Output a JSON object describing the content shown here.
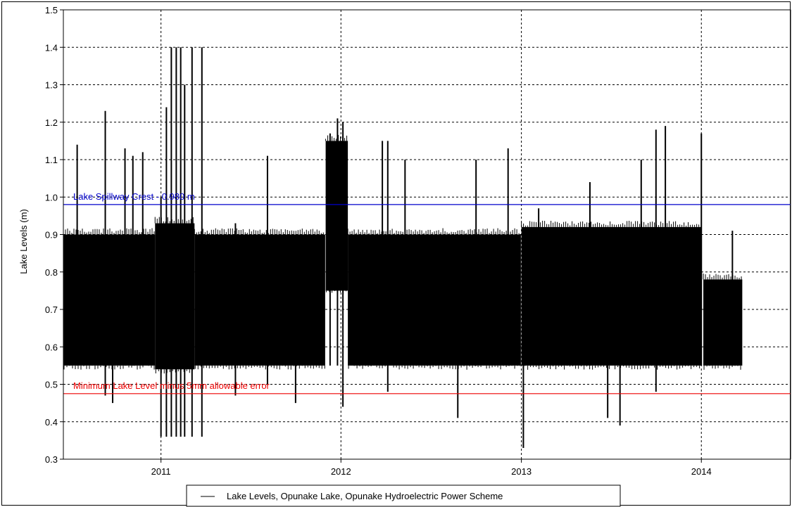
{
  "chart_data": {
    "type": "line",
    "title": "",
    "xlabel": "",
    "ylabel": "Lake Levels (m)",
    "xlim": [
      "2010-06-17",
      "2014-07-01"
    ],
    "ylim": [
      0.3,
      1.5
    ],
    "y_ticks": [
      "0.3",
      "0.4",
      "0.5",
      "0.6",
      "0.7",
      "0.8",
      "0.9",
      "1.0",
      "1.1",
      "1.2",
      "1.3",
      "1.4",
      "1.5"
    ],
    "x_ticks": [
      {
        "label": "2011",
        "date": "2011-01-01"
      },
      {
        "label": "2012",
        "date": "2012-01-01"
      },
      {
        "label": "2013",
        "date": "2013-01-01"
      },
      {
        "label": "2014",
        "date": "2014-01-01"
      }
    ],
    "grid": true,
    "legend_position": "bottom-center",
    "series": [
      {
        "name": "Lake Levels, Opunake Lake, Opunake Hydroelectric Power Scheme",
        "color": "#000000",
        "band": [
          {
            "from": "2010-06-17",
            "to": "2010-12-20",
            "low": 0.55,
            "high": 0.9
          },
          {
            "from": "2010-12-20",
            "to": "2011-03-10",
            "low": 0.54,
            "high": 0.93
          },
          {
            "from": "2011-03-10",
            "to": "2011-11-30",
            "low": 0.55,
            "high": 0.9
          },
          {
            "from": "2011-12-01",
            "to": "2012-01-15",
            "low": 0.75,
            "high": 1.15
          },
          {
            "from": "2012-01-15",
            "to": "2012-12-31",
            "low": 0.55,
            "high": 0.9
          },
          {
            "from": "2013-01-01",
            "to": "2013-12-31",
            "low": 0.55,
            "high": 0.92
          },
          {
            "from": "2014-01-05",
            "to": "2014-03-25",
            "low": 0.55,
            "high": 0.78
          }
        ],
        "spikes": [
          {
            "date": "2010-07-15",
            "low": 0.55,
            "high": 1.14
          },
          {
            "date": "2010-09-10",
            "low": 0.47,
            "high": 1.23
          },
          {
            "date": "2010-09-25",
            "low": 0.45,
            "high": 0.9
          },
          {
            "date": "2010-10-20",
            "low": 0.55,
            "high": 1.13
          },
          {
            "date": "2010-11-05",
            "low": 0.55,
            "high": 1.11
          },
          {
            "date": "2010-11-25",
            "low": 0.55,
            "high": 1.12
          },
          {
            "date": "2011-01-01",
            "low": 0.36,
            "high": 1.0
          },
          {
            "date": "2011-01-12",
            "low": 0.36,
            "high": 1.24
          },
          {
            "date": "2011-01-22",
            "low": 0.36,
            "high": 1.4
          },
          {
            "date": "2011-02-01",
            "low": 0.36,
            "high": 1.4
          },
          {
            "date": "2011-02-10",
            "low": 0.36,
            "high": 1.4
          },
          {
            "date": "2011-02-18",
            "low": 0.36,
            "high": 1.3
          },
          {
            "date": "2011-03-05",
            "low": 0.36,
            "high": 1.4
          },
          {
            "date": "2011-03-25",
            "low": 0.36,
            "high": 1.4
          },
          {
            "date": "2011-06-01",
            "low": 0.47,
            "high": 0.93
          },
          {
            "date": "2011-08-05",
            "low": 0.5,
            "high": 1.11
          },
          {
            "date": "2011-10-01",
            "low": 0.45,
            "high": 0.9
          },
          {
            "date": "2011-12-10",
            "low": 0.55,
            "high": 1.17
          },
          {
            "date": "2011-12-25",
            "low": 0.55,
            "high": 1.21
          },
          {
            "date": "2012-01-05",
            "low": 0.44,
            "high": 1.2
          },
          {
            "date": "2012-03-25",
            "low": 0.55,
            "high": 1.15
          },
          {
            "date": "2012-04-05",
            "low": 0.48,
            "high": 1.15
          },
          {
            "date": "2012-05-10",
            "low": 0.55,
            "high": 1.1
          },
          {
            "date": "2012-08-25",
            "low": 0.41,
            "high": 0.9
          },
          {
            "date": "2012-10-01",
            "low": 0.55,
            "high": 1.1
          },
          {
            "date": "2012-12-05",
            "low": 0.55,
            "high": 1.13
          },
          {
            "date": "2013-01-05",
            "low": 0.33,
            "high": 0.9
          },
          {
            "date": "2013-02-05",
            "low": 0.55,
            "high": 0.97
          },
          {
            "date": "2013-05-20",
            "low": 0.55,
            "high": 1.04
          },
          {
            "date": "2013-06-25",
            "low": 0.41,
            "high": 0.9
          },
          {
            "date": "2013-07-20",
            "low": 0.39,
            "high": 0.92
          },
          {
            "date": "2013-09-01",
            "low": 0.55,
            "high": 1.1
          },
          {
            "date": "2013-10-01",
            "low": 0.48,
            "high": 1.18
          },
          {
            "date": "2013-10-20",
            "low": 0.55,
            "high": 1.19
          },
          {
            "date": "2014-01-01",
            "low": 0.55,
            "high": 1.17
          },
          {
            "date": "2014-03-05",
            "low": 0.55,
            "high": 0.91
          }
        ]
      }
    ],
    "reference_lines": [
      {
        "label": "Lake Spillway Crest - 0.980 m",
        "value": 0.98,
        "color": "#0000cc"
      },
      {
        "label": "Minimum Lake Level minus 5mm allowable error",
        "value": 0.475,
        "color": "#ee0000"
      }
    ]
  }
}
